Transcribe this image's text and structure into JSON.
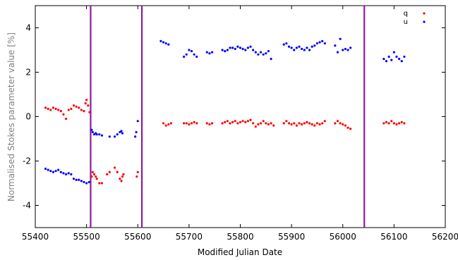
{
  "chart_data": {
    "type": "scatter",
    "xlabel": "Modified Julian Date",
    "ylabel": "Normalised Stokes parameter value [%]",
    "xlim": [
      55400,
      56200
    ],
    "ylim": [
      -5,
      5
    ],
    "x_ticks": [
      55400,
      55500,
      55600,
      55700,
      55800,
      55900,
      56000,
      56100,
      56200
    ],
    "y_ticks": [
      -4,
      -2,
      0,
      2,
      4
    ],
    "legend_position": "top-right",
    "vertical_lines": {
      "color": "#8e1a9e",
      "x": [
        55508,
        55608,
        56042
      ]
    },
    "series": [
      {
        "name": "q",
        "color": "#ff0000",
        "points": [
          [
            55420,
            0.4
          ],
          [
            55425,
            0.35
          ],
          [
            55430,
            0.3
          ],
          [
            55435,
            0.4
          ],
          [
            55440,
            0.35
          ],
          [
            55445,
            0.3
          ],
          [
            55450,
            0.25
          ],
          [
            55455,
            0.1
          ],
          [
            55460,
            -0.1
          ],
          [
            55465,
            0.3
          ],
          [
            55470,
            0.35
          ],
          [
            55475,
            0.5
          ],
          [
            55480,
            0.45
          ],
          [
            55485,
            0.4
          ],
          [
            55490,
            0.3
          ],
          [
            55495,
            0.25
          ],
          [
            55498,
            0.6
          ],
          [
            55500,
            0.75
          ],
          [
            55503,
            0.5
          ],
          [
            55506,
            0.2
          ],
          [
            55510,
            -2.7
          ],
          [
            55512,
            -2.5
          ],
          [
            55515,
            -2.6
          ],
          [
            55518,
            -2.7
          ],
          [
            55520,
            -2.8
          ],
          [
            55525,
            -3.0
          ],
          [
            55530,
            -3.0
          ],
          [
            55540,
            -2.6
          ],
          [
            55545,
            -2.5
          ],
          [
            55555,
            -2.3
          ],
          [
            55560,
            -2.5
          ],
          [
            55565,
            -2.8
          ],
          [
            55568,
            -2.9
          ],
          [
            55570,
            -2.7
          ],
          [
            55572,
            -2.6
          ],
          [
            55598,
            -2.7
          ],
          [
            55600,
            -2.5
          ],
          [
            55650,
            -0.3
          ],
          [
            55655,
            -0.4
          ],
          [
            55660,
            -0.35
          ],
          [
            55665,
            -0.3
          ],
          [
            55690,
            -0.3
          ],
          [
            55695,
            -0.3
          ],
          [
            55700,
            -0.35
          ],
          [
            55705,
            -0.3
          ],
          [
            55710,
            -0.25
          ],
          [
            55715,
            -0.3
          ],
          [
            55735,
            -0.3
          ],
          [
            55740,
            -0.35
          ],
          [
            55745,
            -0.3
          ],
          [
            55765,
            -0.3
          ],
          [
            55770,
            -0.25
          ],
          [
            55775,
            -0.2
          ],
          [
            55780,
            -0.3
          ],
          [
            55785,
            -0.25
          ],
          [
            55790,
            -0.2
          ],
          [
            55795,
            -0.3
          ],
          [
            55800,
            -0.25
          ],
          [
            55805,
            -0.2
          ],
          [
            55810,
            -0.25
          ],
          [
            55815,
            -0.2
          ],
          [
            55820,
            -0.15
          ],
          [
            55825,
            -0.3
          ],
          [
            55830,
            -0.45
          ],
          [
            55835,
            -0.35
          ],
          [
            55840,
            -0.3
          ],
          [
            55845,
            -0.2
          ],
          [
            55850,
            -0.3
          ],
          [
            55855,
            -0.35
          ],
          [
            55860,
            -0.3
          ],
          [
            55865,
            -0.4
          ],
          [
            55885,
            -0.3
          ],
          [
            55890,
            -0.2
          ],
          [
            55895,
            -0.3
          ],
          [
            55900,
            -0.35
          ],
          [
            55905,
            -0.3
          ],
          [
            55910,
            -0.4
          ],
          [
            55915,
            -0.3
          ],
          [
            55920,
            -0.35
          ],
          [
            55925,
            -0.3
          ],
          [
            55930,
            -0.25
          ],
          [
            55935,
            -0.3
          ],
          [
            55940,
            -0.35
          ],
          [
            55945,
            -0.4
          ],
          [
            55950,
            -0.3
          ],
          [
            55955,
            -0.35
          ],
          [
            55960,
            -0.3
          ],
          [
            55965,
            -0.2
          ],
          [
            55985,
            -0.3
          ],
          [
            55990,
            -0.2
          ],
          [
            55995,
            -0.3
          ],
          [
            56000,
            -0.35
          ],
          [
            56005,
            -0.4
          ],
          [
            56010,
            -0.5
          ],
          [
            56015,
            -0.55
          ],
          [
            56080,
            -0.3
          ],
          [
            56085,
            -0.25
          ],
          [
            56090,
            -0.3
          ],
          [
            56095,
            -0.2
          ],
          [
            56100,
            -0.3
          ],
          [
            56105,
            -0.35
          ],
          [
            56110,
            -0.3
          ],
          [
            56115,
            -0.25
          ],
          [
            56120,
            -0.3
          ]
        ]
      },
      {
        "name": "u",
        "color": "#0000ff",
        "points": [
          [
            55420,
            -2.35
          ],
          [
            55425,
            -2.4
          ],
          [
            55430,
            -2.45
          ],
          [
            55435,
            -2.5
          ],
          [
            55440,
            -2.45
          ],
          [
            55445,
            -2.4
          ],
          [
            55450,
            -2.5
          ],
          [
            55455,
            -2.55
          ],
          [
            55460,
            -2.6
          ],
          [
            55465,
            -2.55
          ],
          [
            55470,
            -2.6
          ],
          [
            55475,
            -2.8
          ],
          [
            55480,
            -2.85
          ],
          [
            55485,
            -2.85
          ],
          [
            55490,
            -2.9
          ],
          [
            55495,
            -2.95
          ],
          [
            55500,
            -3.0
          ],
          [
            55505,
            -2.95
          ],
          [
            55510,
            -0.6
          ],
          [
            55512,
            -0.7
          ],
          [
            55515,
            -0.8
          ],
          [
            55518,
            -0.75
          ],
          [
            55520,
            -0.8
          ],
          [
            55525,
            -0.8
          ],
          [
            55530,
            -0.85
          ],
          [
            55545,
            -0.9
          ],
          [
            55555,
            -0.9
          ],
          [
            55560,
            -0.8
          ],
          [
            55565,
            -0.7
          ],
          [
            55568,
            -0.65
          ],
          [
            55570,
            -0.75
          ],
          [
            55595,
            -0.9
          ],
          [
            55597,
            -0.7
          ],
          [
            55600,
            -0.2
          ],
          [
            55645,
            3.4
          ],
          [
            55650,
            3.35
          ],
          [
            55655,
            3.3
          ],
          [
            55660,
            3.25
          ],
          [
            55690,
            2.7
          ],
          [
            55695,
            2.8
          ],
          [
            55700,
            3.0
          ],
          [
            55705,
            2.95
          ],
          [
            55710,
            2.8
          ],
          [
            55715,
            2.7
          ],
          [
            55735,
            2.9
          ],
          [
            55740,
            2.85
          ],
          [
            55745,
            2.9
          ],
          [
            55765,
            3.0
          ],
          [
            55770,
            2.95
          ],
          [
            55775,
            3.0
          ],
          [
            55780,
            3.1
          ],
          [
            55785,
            3.1
          ],
          [
            55790,
            3.05
          ],
          [
            55795,
            3.15
          ],
          [
            55800,
            3.1
          ],
          [
            55805,
            3.05
          ],
          [
            55810,
            3.0
          ],
          [
            55815,
            3.1
          ],
          [
            55820,
            3.15
          ],
          [
            55825,
            3.0
          ],
          [
            55830,
            2.9
          ],
          [
            55835,
            2.8
          ],
          [
            55840,
            2.9
          ],
          [
            55845,
            2.8
          ],
          [
            55850,
            2.85
          ],
          [
            55855,
            2.95
          ],
          [
            55860,
            2.6
          ],
          [
            55885,
            3.25
          ],
          [
            55890,
            3.3
          ],
          [
            55895,
            3.15
          ],
          [
            55900,
            3.1
          ],
          [
            55905,
            3.0
          ],
          [
            55910,
            3.1
          ],
          [
            55915,
            3.15
          ],
          [
            55920,
            3.05
          ],
          [
            55925,
            3.0
          ],
          [
            55930,
            3.1
          ],
          [
            55935,
            3.0
          ],
          [
            55940,
            3.15
          ],
          [
            55945,
            3.2
          ],
          [
            55950,
            3.3
          ],
          [
            55955,
            3.35
          ],
          [
            55960,
            3.4
          ],
          [
            55965,
            3.3
          ],
          [
            55985,
            3.2
          ],
          [
            55990,
            2.9
          ],
          [
            55995,
            3.5
          ],
          [
            56000,
            3.0
          ],
          [
            56005,
            3.05
          ],
          [
            56010,
            3.0
          ],
          [
            56015,
            3.1
          ],
          [
            56080,
            2.6
          ],
          [
            56085,
            2.5
          ],
          [
            56090,
            2.7
          ],
          [
            56095,
            2.55
          ],
          [
            56100,
            2.9
          ],
          [
            56105,
            2.7
          ],
          [
            56110,
            2.6
          ],
          [
            56115,
            2.5
          ],
          [
            56120,
            2.7
          ]
        ]
      }
    ]
  }
}
